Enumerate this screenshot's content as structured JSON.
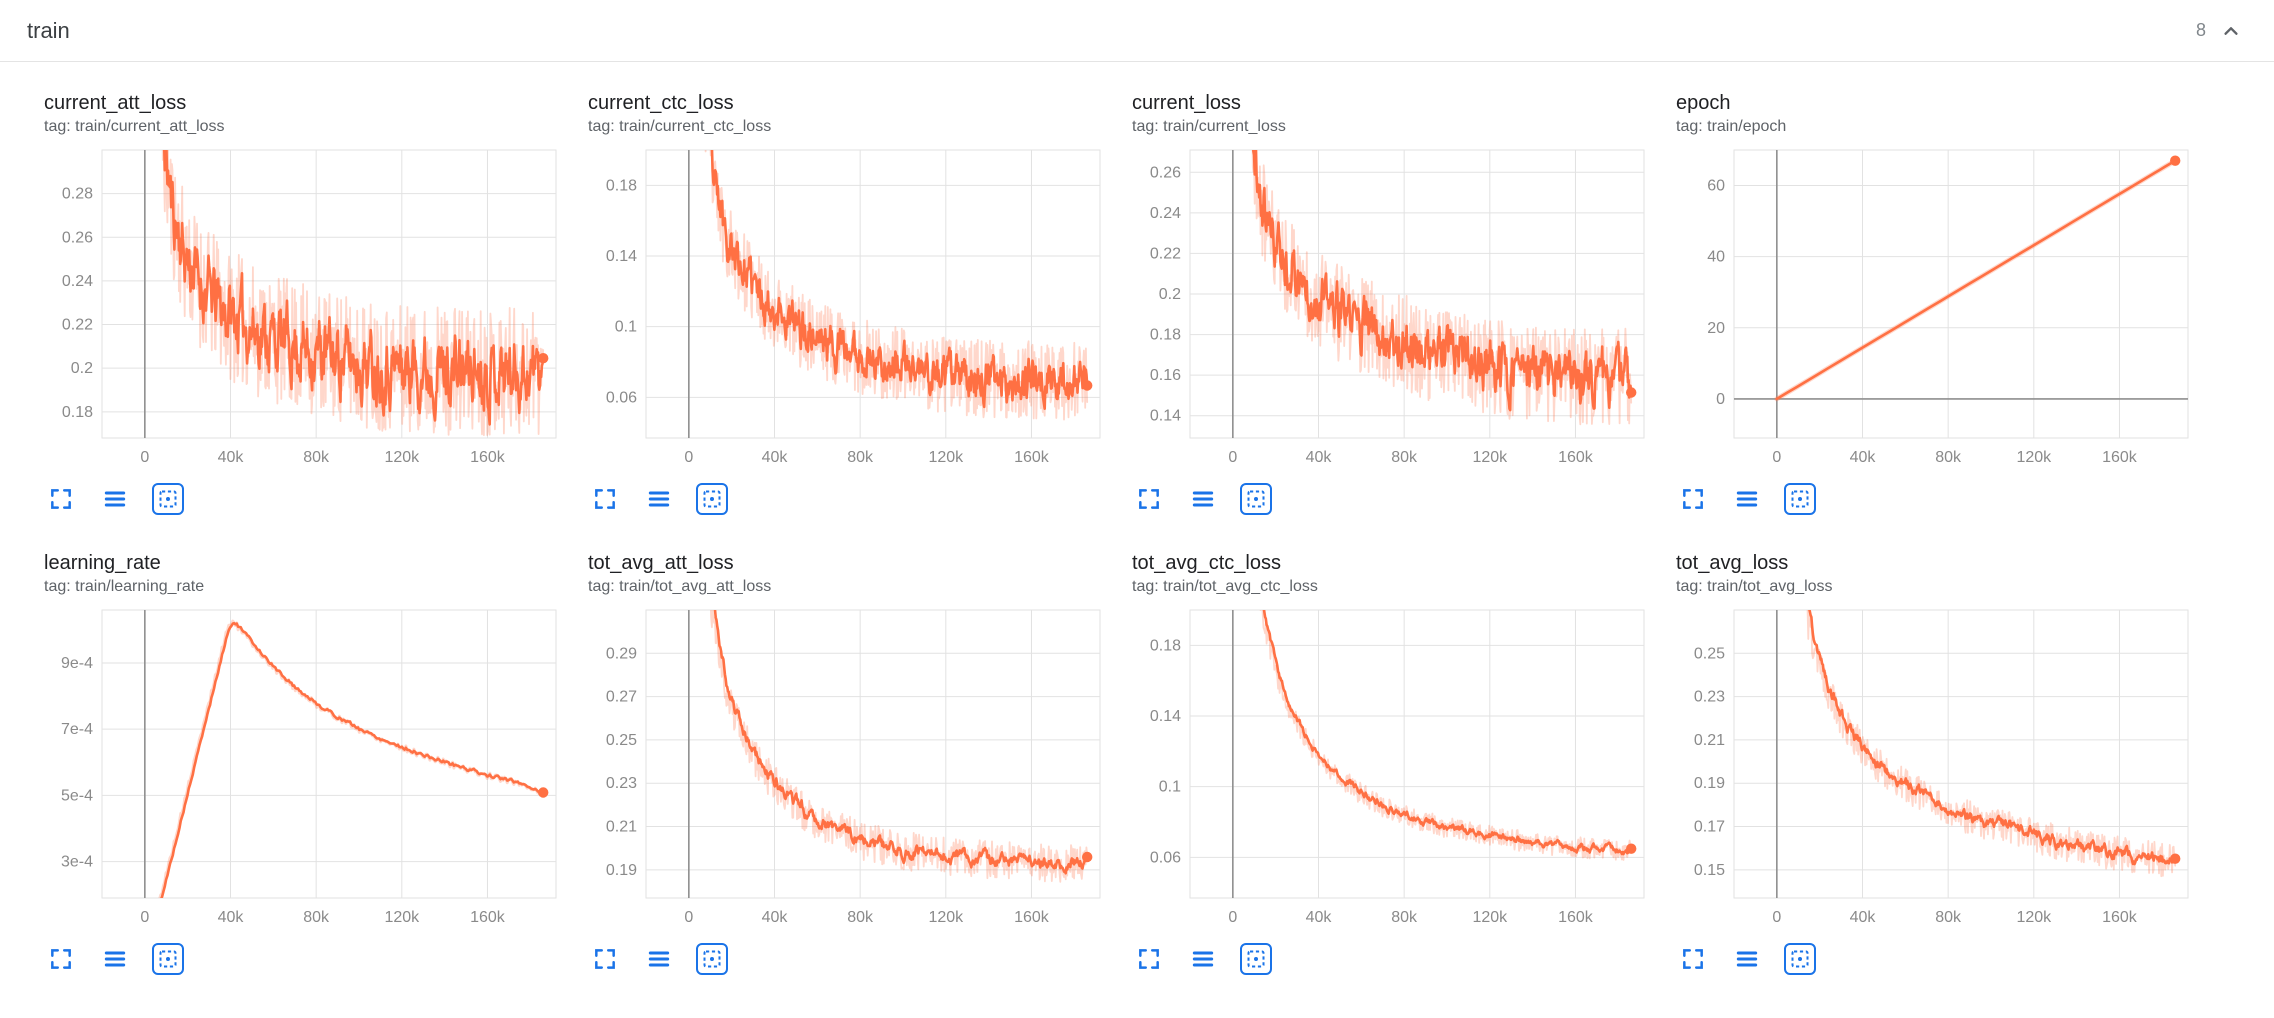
{
  "header": {
    "title": "train",
    "count": "8"
  },
  "colors": {
    "line": "#ff7043",
    "raw": "rgba(255,112,67,0.28)",
    "grid": "#e2e2e2",
    "axis": "#8f8f8f",
    "tick": "#8a8a8a",
    "icon_blue": "#1a73e8",
    "title_text": "#202124",
    "tag_text": "#5f6368"
  },
  "toolbar": {
    "icons": [
      {
        "name": "expand-icon"
      },
      {
        "name": "data-table-icon"
      },
      {
        "name": "fit-domain-icon",
        "active": true
      }
    ]
  },
  "chart_data": [
    {
      "id": "current_att_loss",
      "type": "line",
      "title": "current_att_loss",
      "tag": "tag: train/current_att_loss",
      "x_range": [
        -20000,
        192000
      ],
      "y_range": [
        0.168,
        0.3
      ],
      "x_ticks": [
        {
          "v": 0,
          "label": "0"
        },
        {
          "v": 40000,
          "label": "40k"
        },
        {
          "v": 80000,
          "label": "80k"
        },
        {
          "v": 120000,
          "label": "120k"
        },
        {
          "v": 160000,
          "label": "160k"
        }
      ],
      "y_ticks": [
        {
          "v": 0.18,
          "label": "0.18"
        },
        {
          "v": 0.2,
          "label": "0.2"
        },
        {
          "v": 0.22,
          "label": "0.22"
        },
        {
          "v": 0.24,
          "label": "0.24"
        },
        {
          "v": 0.26,
          "label": "0.26"
        },
        {
          "v": 0.28,
          "label": "0.28"
        }
      ],
      "trend": [
        [
          0,
          0.6
        ],
        [
          4000,
          0.4
        ],
        [
          8000,
          0.31
        ],
        [
          12000,
          0.275
        ],
        [
          18000,
          0.252
        ],
        [
          25000,
          0.24
        ],
        [
          35000,
          0.228
        ],
        [
          50000,
          0.218
        ],
        [
          70000,
          0.21
        ],
        [
          90000,
          0.205
        ],
        [
          110000,
          0.201
        ],
        [
          130000,
          0.2
        ],
        [
          150000,
          0.199
        ],
        [
          186000,
          0.199
        ]
      ],
      "raw_noise": 0.03,
      "smoothing": 0.6,
      "points": 620,
      "seed": 11,
      "end_dot": true
    },
    {
      "id": "current_ctc_loss",
      "type": "line",
      "title": "current_ctc_loss",
      "tag": "tag: train/current_ctc_loss",
      "x_range": [
        -20000,
        192000
      ],
      "y_range": [
        0.037,
        0.2
      ],
      "x_ticks": [
        {
          "v": 0,
          "label": "0"
        },
        {
          "v": 40000,
          "label": "40k"
        },
        {
          "v": 80000,
          "label": "80k"
        },
        {
          "v": 120000,
          "label": "120k"
        },
        {
          "v": 160000,
          "label": "160k"
        }
      ],
      "y_ticks": [
        {
          "v": 0.06,
          "label": "0.06"
        },
        {
          "v": 0.1,
          "label": "0.1"
        },
        {
          "v": 0.14,
          "label": "0.14"
        },
        {
          "v": 0.18,
          "label": "0.18"
        }
      ],
      "trend": [
        [
          0,
          0.5
        ],
        [
          4000,
          0.3
        ],
        [
          8000,
          0.21
        ],
        [
          12000,
          0.175
        ],
        [
          18000,
          0.15
        ],
        [
          25000,
          0.132
        ],
        [
          35000,
          0.115
        ],
        [
          50000,
          0.1
        ],
        [
          70000,
          0.088
        ],
        [
          90000,
          0.08
        ],
        [
          110000,
          0.074
        ],
        [
          130000,
          0.071
        ],
        [
          150000,
          0.07
        ],
        [
          186000,
          0.069
        ]
      ],
      "raw_noise": 0.022,
      "smoothing": 0.6,
      "points": 620,
      "seed": 23,
      "end_dot": true
    },
    {
      "id": "current_loss",
      "type": "line",
      "title": "current_loss",
      "tag": "tag: train/current_loss",
      "x_range": [
        -20000,
        192000
      ],
      "y_range": [
        0.129,
        0.271
      ],
      "x_ticks": [
        {
          "v": 0,
          "label": "0"
        },
        {
          "v": 40000,
          "label": "40k"
        },
        {
          "v": 80000,
          "label": "80k"
        },
        {
          "v": 120000,
          "label": "120k"
        },
        {
          "v": 160000,
          "label": "160k"
        }
      ],
      "y_ticks": [
        {
          "v": 0.14,
          "label": "0.14"
        },
        {
          "v": 0.16,
          "label": "0.16"
        },
        {
          "v": 0.18,
          "label": "0.18"
        },
        {
          "v": 0.2,
          "label": "0.2"
        },
        {
          "v": 0.22,
          "label": "0.22"
        },
        {
          "v": 0.24,
          "label": "0.24"
        },
        {
          "v": 0.26,
          "label": "0.26"
        }
      ],
      "trend": [
        [
          0,
          0.55
        ],
        [
          4000,
          0.35
        ],
        [
          8000,
          0.28
        ],
        [
          12000,
          0.248
        ],
        [
          18000,
          0.228
        ],
        [
          25000,
          0.215
        ],
        [
          35000,
          0.202
        ],
        [
          50000,
          0.19
        ],
        [
          70000,
          0.18
        ],
        [
          90000,
          0.172
        ],
        [
          110000,
          0.166
        ],
        [
          130000,
          0.162
        ],
        [
          150000,
          0.16
        ],
        [
          186000,
          0.159
        ]
      ],
      "raw_noise": 0.024,
      "smoothing": 0.6,
      "points": 620,
      "seed": 37,
      "end_dot": true
    },
    {
      "id": "epoch",
      "type": "line",
      "title": "epoch",
      "tag": "tag: train/epoch",
      "x_range": [
        -20000,
        192000
      ],
      "y_range": [
        -11,
        70
      ],
      "x_ticks": [
        {
          "v": 0,
          "label": "0"
        },
        {
          "v": 40000,
          "label": "40k"
        },
        {
          "v": 80000,
          "label": "80k"
        },
        {
          "v": 120000,
          "label": "120k"
        },
        {
          "v": 160000,
          "label": "160k"
        }
      ],
      "y_ticks": [
        {
          "v": 0,
          "label": "0"
        },
        {
          "v": 20,
          "label": "20"
        },
        {
          "v": 40,
          "label": "40"
        },
        {
          "v": 60,
          "label": "60"
        }
      ],
      "trend": [
        [
          0,
          0
        ],
        [
          186000,
          67
        ]
      ],
      "raw_noise": 0,
      "raw_width": 5,
      "smoothing": 0,
      "points": 40,
      "seed": 1,
      "end_dot": true
    },
    {
      "id": "learning_rate",
      "type": "line",
      "title": "learning_rate",
      "tag": "tag: train/learning_rate",
      "x_range": [
        -20000,
        192000
      ],
      "y_range": [
        0.00019,
        0.00106
      ],
      "x_ticks": [
        {
          "v": 0,
          "label": "0"
        },
        {
          "v": 40000,
          "label": "40k"
        },
        {
          "v": 80000,
          "label": "80k"
        },
        {
          "v": 120000,
          "label": "120k"
        },
        {
          "v": 160000,
          "label": "160k"
        }
      ],
      "y_ticks": [
        {
          "v": 0.0003,
          "label": "3e-4"
        },
        {
          "v": 0.0005,
          "label": "5e-4"
        },
        {
          "v": 0.0007,
          "label": "7e-4"
        },
        {
          "v": 0.0009,
          "label": "9e-4"
        }
      ],
      "trend": [
        [
          0,
          2e-05
        ],
        [
          5000,
          0.000135
        ],
        [
          10000,
          0.00026
        ],
        [
          15000,
          0.00039
        ],
        [
          20000,
          0.00052
        ],
        [
          25000,
          0.00065
        ],
        [
          30000,
          0.00078
        ],
        [
          35000,
          0.00091
        ],
        [
          38000,
          0.00099
        ],
        [
          40000,
          0.001025
        ],
        [
          42000,
          0.00102
        ],
        [
          46000,
          0.00099
        ],
        [
          52000,
          0.000945
        ],
        [
          60000,
          0.000885
        ],
        [
          70000,
          0.000825
        ],
        [
          80000,
          0.000775
        ],
        [
          90000,
          0.000735
        ],
        [
          100000,
          0.0007
        ],
        [
          110000,
          0.00067
        ],
        [
          120000,
          0.000645
        ],
        [
          130000,
          0.00062
        ],
        [
          140000,
          0.0006
        ],
        [
          150000,
          0.00058
        ],
        [
          160000,
          0.00056
        ],
        [
          170000,
          0.000545
        ],
        [
          178000,
          0.00053
        ],
        [
          186000,
          0.000505
        ]
      ],
      "raw_noise": 9e-06,
      "raw_width": 3,
      "smoothing": 0.5,
      "points": 300,
      "seed": 5,
      "end_dot": true
    },
    {
      "id": "tot_avg_att_loss",
      "type": "line",
      "title": "tot_avg_att_loss",
      "tag": "tag: train/tot_avg_att_loss",
      "x_range": [
        -20000,
        192000
      ],
      "y_range": [
        0.177,
        0.31
      ],
      "x_ticks": [
        {
          "v": 0,
          "label": "0"
        },
        {
          "v": 40000,
          "label": "40k"
        },
        {
          "v": 80000,
          "label": "80k"
        },
        {
          "v": 120000,
          "label": "120k"
        },
        {
          "v": 160000,
          "label": "160k"
        }
      ],
      "y_ticks": [
        {
          "v": 0.19,
          "label": "0.19"
        },
        {
          "v": 0.21,
          "label": "0.21"
        },
        {
          "v": 0.23,
          "label": "0.23"
        },
        {
          "v": 0.25,
          "label": "0.25"
        },
        {
          "v": 0.27,
          "label": "0.27"
        },
        {
          "v": 0.29,
          "label": "0.29"
        }
      ],
      "trend": [
        [
          0,
          0.6
        ],
        [
          5000,
          0.4
        ],
        [
          10000,
          0.315
        ],
        [
          15000,
          0.285
        ],
        [
          20000,
          0.265
        ],
        [
          25000,
          0.252
        ],
        [
          30000,
          0.243
        ],
        [
          40000,
          0.229
        ],
        [
          50000,
          0.22
        ],
        [
          60000,
          0.213
        ],
        [
          70000,
          0.208
        ],
        [
          80000,
          0.204
        ],
        [
          90000,
          0.201
        ],
        [
          100000,
          0.199
        ],
        [
          115000,
          0.197
        ],
        [
          130000,
          0.195
        ],
        [
          150000,
          0.194
        ],
        [
          170000,
          0.193
        ],
        [
          186000,
          0.192
        ]
      ],
      "raw_noise": 0.009,
      "smoothing": 0.75,
      "points": 520,
      "seed": 41,
      "end_dot": true
    },
    {
      "id": "tot_avg_ctc_loss",
      "type": "line",
      "title": "tot_avg_ctc_loss",
      "tag": "tag: train/tot_avg_ctc_loss",
      "x_range": [
        -20000,
        192000
      ],
      "y_range": [
        0.037,
        0.2
      ],
      "x_ticks": [
        {
          "v": 0,
          "label": "0"
        },
        {
          "v": 40000,
          "label": "40k"
        },
        {
          "v": 80000,
          "label": "80k"
        },
        {
          "v": 120000,
          "label": "120k"
        },
        {
          "v": 160000,
          "label": "160k"
        }
      ],
      "y_ticks": [
        {
          "v": 0.06,
          "label": "0.06"
        },
        {
          "v": 0.1,
          "label": "0.1"
        },
        {
          "v": 0.14,
          "label": "0.14"
        },
        {
          "v": 0.18,
          "label": "0.18"
        }
      ],
      "trend": [
        [
          0,
          0.5
        ],
        [
          5000,
          0.3
        ],
        [
          10000,
          0.225
        ],
        [
          15000,
          0.19
        ],
        [
          20000,
          0.165
        ],
        [
          25000,
          0.148
        ],
        [
          30000,
          0.135
        ],
        [
          40000,
          0.117
        ],
        [
          50000,
          0.105
        ],
        [
          60000,
          0.096
        ],
        [
          70000,
          0.089
        ],
        [
          80000,
          0.084
        ],
        [
          90000,
          0.08
        ],
        [
          100000,
          0.077
        ],
        [
          115000,
          0.073
        ],
        [
          130000,
          0.07
        ],
        [
          150000,
          0.067
        ],
        [
          170000,
          0.065
        ],
        [
          186000,
          0.064
        ]
      ],
      "raw_noise": 0.006,
      "smoothing": 0.75,
      "points": 520,
      "seed": 53,
      "end_dot": true
    },
    {
      "id": "tot_avg_loss",
      "type": "line",
      "title": "tot_avg_loss",
      "tag": "tag: train/tot_avg_loss",
      "x_range": [
        -20000,
        192000
      ],
      "y_range": [
        0.137,
        0.27
      ],
      "x_ticks": [
        {
          "v": 0,
          "label": "0"
        },
        {
          "v": 40000,
          "label": "40k"
        },
        {
          "v": 80000,
          "label": "80k"
        },
        {
          "v": 120000,
          "label": "120k"
        },
        {
          "v": 160000,
          "label": "160k"
        }
      ],
      "y_ticks": [
        {
          "v": 0.15,
          "label": "0.15"
        },
        {
          "v": 0.17,
          "label": "0.17"
        },
        {
          "v": 0.19,
          "label": "0.19"
        },
        {
          "v": 0.21,
          "label": "0.21"
        },
        {
          "v": 0.23,
          "label": "0.23"
        },
        {
          "v": 0.25,
          "label": "0.25"
        }
      ],
      "trend": [
        [
          0,
          0.55
        ],
        [
          5000,
          0.37
        ],
        [
          10000,
          0.29
        ],
        [
          15000,
          0.262
        ],
        [
          20000,
          0.243
        ],
        [
          25000,
          0.23
        ],
        [
          30000,
          0.22
        ],
        [
          40000,
          0.206
        ],
        [
          50000,
          0.196
        ],
        [
          60000,
          0.189
        ],
        [
          70000,
          0.183
        ],
        [
          80000,
          0.178
        ],
        [
          90000,
          0.174
        ],
        [
          100000,
          0.171
        ],
        [
          115000,
          0.167
        ],
        [
          130000,
          0.163
        ],
        [
          150000,
          0.159
        ],
        [
          170000,
          0.156
        ],
        [
          186000,
          0.154
        ]
      ],
      "raw_noise": 0.008,
      "smoothing": 0.75,
      "points": 520,
      "seed": 67,
      "end_dot": true
    }
  ]
}
